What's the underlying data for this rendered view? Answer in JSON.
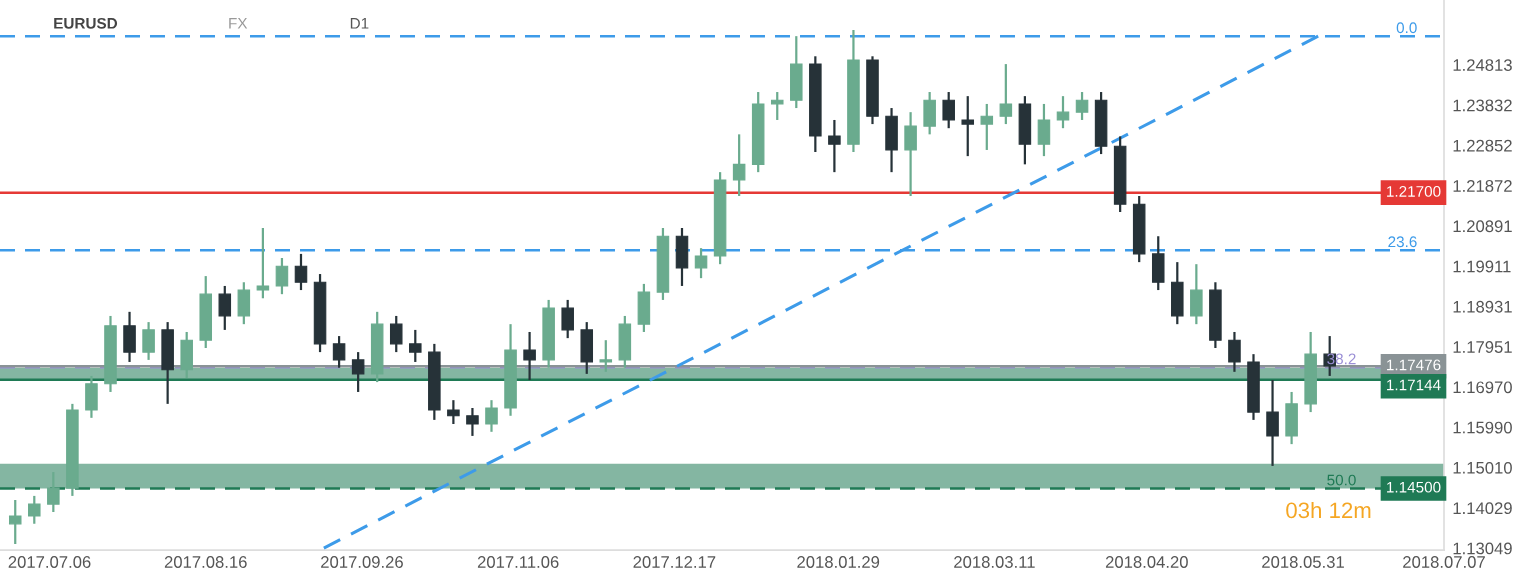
{
  "chart_data": {
    "type": "candlestick",
    "annotations": [
      "EURUSD",
      "FX",
      "D1",
      "03h 12m",
      {
        "text": "0.0",
        "x": "2018-06-30",
        "y": 1.2551
      },
      {
        "text": "23.6",
        "x": "2018-06-30",
        "y": 1.203
      },
      {
        "text": "38.2",
        "x": "2018-06-14",
        "y": 1.1745
      },
      {
        "text": "50.0",
        "x": "2018-06-14",
        "y": 1.145
      }
    ],
    "series": [
      {
        "x": [
          "2017-06-27",
          "2017-07-02",
          "2017-07-07",
          "2017-07-12",
          "2017-07-17",
          "2017-07-22",
          "2017-07-27",
          "2017-08-01",
          "2017-08-06",
          "2017-08-11",
          "2017-08-16",
          "2017-08-21",
          "2017-08-26",
          "2017-08-31",
          "2017-09-05",
          "2017-09-10",
          "2017-09-15",
          "2017-09-20",
          "2017-09-25",
          "2017-09-30",
          "2017-10-05",
          "2017-10-10",
          "2017-10-15",
          "2017-10-20",
          "2017-10-25",
          "2017-10-30",
          "2017-11-04",
          "2017-11-09",
          "2017-11-14",
          "2017-11-19",
          "2017-11-24",
          "2017-11-29",
          "2017-12-04",
          "2017-12-09",
          "2017-12-14",
          "2017-12-19",
          "2017-12-24",
          "2017-12-29",
          "2018-01-03",
          "2018-01-08",
          "2018-01-13",
          "2018-01-18",
          "2018-01-23",
          "2018-01-28",
          "2018-02-02",
          "2018-02-07",
          "2018-02-12",
          "2018-02-17",
          "2018-02-22",
          "2018-02-27",
          "2018-03-04",
          "2018-03-09",
          "2018-03-14",
          "2018-03-19",
          "2018-03-24",
          "2018-03-29",
          "2018-04-03",
          "2018-04-08",
          "2018-04-13",
          "2018-04-18",
          "2018-04-23",
          "2018-04-28",
          "2018-05-03",
          "2018-05-08",
          "2018-05-13",
          "2018-05-18",
          "2018-05-23",
          "2018-05-28",
          "2018-06-02",
          "2018-06-07"
        ],
        "ohlc": [
          [
            1.1364,
            1.1422,
            1.1315,
            1.1383
          ],
          [
            1.1383,
            1.1432,
            1.1364,
            1.1412
          ],
          [
            1.1412,
            1.149,
            1.1393,
            1.1451
          ],
          [
            1.1451,
            1.1656,
            1.1432,
            1.1641
          ],
          [
            1.1641,
            1.1724,
            1.1622,
            1.1705
          ],
          [
            1.1705,
            1.187,
            1.1685,
            1.1846
          ],
          [
            1.1846,
            1.188,
            1.1758,
            1.1782
          ],
          [
            1.1782,
            1.1855,
            1.1763,
            1.1836
          ],
          [
            1.1836,
            1.1855,
            1.1656,
            1.1739
          ],
          [
            1.1739,
            1.1831,
            1.1719,
            1.1811
          ],
          [
            1.1811,
            1.1967,
            1.1792,
            1.1923
          ],
          [
            1.1923,
            1.1943,
            1.1836,
            1.187
          ],
          [
            1.187,
            1.1952,
            1.185,
            1.1933
          ],
          [
            1.1933,
            1.2084,
            1.1913,
            1.1943
          ],
          [
            1.1943,
            1.2011,
            1.1923,
            1.1991
          ],
          [
            1.1991,
            1.2021,
            1.1933,
            1.1952
          ],
          [
            1.1952,
            1.1972,
            1.1782,
            1.1802
          ],
          [
            1.1802,
            1.1821,
            1.1744,
            1.1763
          ],
          [
            1.1763,
            1.1782,
            1.1685,
            1.1729
          ],
          [
            1.1729,
            1.188,
            1.1709,
            1.185
          ],
          [
            1.185,
            1.187,
            1.1782,
            1.1802
          ],
          [
            1.1802,
            1.1836,
            1.1758,
            1.1782
          ],
          [
            1.1782,
            1.1802,
            1.1617,
            1.1641
          ],
          [
            1.1641,
            1.1665,
            1.1607,
            1.1627
          ],
          [
            1.1627,
            1.1646,
            1.1578,
            1.1607
          ],
          [
            1.1607,
            1.1665,
            1.1588,
            1.1646
          ],
          [
            1.1646,
            1.185,
            1.1627,
            1.1787
          ],
          [
            1.1787,
            1.1831,
            1.1714,
            1.1763
          ],
          [
            1.1763,
            1.1909,
            1.1744,
            1.1889
          ],
          [
            1.1889,
            1.1909,
            1.1816,
            1.1836
          ],
          [
            1.1836,
            1.1855,
            1.1729,
            1.1758
          ],
          [
            1.1758,
            1.1811,
            1.1734,
            1.1763
          ],
          [
            1.1763,
            1.187,
            1.1744,
            1.185
          ],
          [
            1.185,
            1.1948,
            1.1831,
            1.1928
          ],
          [
            1.1928,
            1.2084,
            1.1909,
            1.2064
          ],
          [
            1.2064,
            1.2084,
            1.1943,
            1.1987
          ],
          [
            1.1987,
            1.2035,
            1.1962,
            1.2016
          ],
          [
            1.2016,
            1.222,
            1.1996,
            1.2201
          ],
          [
            1.2201,
            1.2312,
            1.2162,
            1.2239
          ],
          [
            1.2239,
            1.2415,
            1.222,
            1.2386
          ],
          [
            1.2386,
            1.2415,
            1.2347,
            1.2395
          ],
          [
            1.2395,
            1.2551,
            1.2376,
            1.2483
          ],
          [
            1.2483,
            1.2502,
            1.2269,
            1.2308
          ],
          [
            1.2308,
            1.2347,
            1.222,
            1.2288
          ],
          [
            1.2288,
            1.2566,
            1.2269,
            1.2493
          ],
          [
            1.2493,
            1.2502,
            1.2337,
            1.2356
          ],
          [
            1.2356,
            1.2376,
            1.222,
            1.2274
          ],
          [
            1.2274,
            1.2366,
            1.2162,
            1.2332
          ],
          [
            1.2332,
            1.2415,
            1.2312,
            1.2395
          ],
          [
            1.2395,
            1.2415,
            1.2327,
            1.2347
          ],
          [
            1.2347,
            1.2405,
            1.2259,
            1.2337
          ],
          [
            1.2337,
            1.2386,
            1.2274,
            1.2356
          ],
          [
            1.2356,
            1.2483,
            1.2337,
            1.2386
          ],
          [
            1.2386,
            1.2405,
            1.2239,
            1.2288
          ],
          [
            1.2288,
            1.2386,
            1.2259,
            1.2347
          ],
          [
            1.2347,
            1.2405,
            1.2327,
            1.2366
          ],
          [
            1.2366,
            1.2415,
            1.2347,
            1.2395
          ],
          [
            1.2395,
            1.2415,
            1.2264,
            1.2283
          ],
          [
            1.2283,
            1.2307,
            1.2123,
            1.2142
          ],
          [
            1.2142,
            1.2162,
            1.2001,
            1.2021
          ],
          [
            1.2021,
            1.2064,
            1.1933,
            1.1952
          ],
          [
            1.1952,
            1.2001,
            1.185,
            1.187
          ],
          [
            1.187,
            1.1996,
            1.185,
            1.1933
          ],
          [
            1.1933,
            1.1952,
            1.1792,
            1.1811
          ],
          [
            1.1811,
            1.1831,
            1.1734,
            1.1758
          ],
          [
            1.1758,
            1.1777,
            1.1617,
            1.1636
          ],
          [
            1.1636,
            1.1714,
            1.1505,
            1.1578
          ],
          [
            1.1578,
            1.1685,
            1.1558,
            1.1656
          ],
          [
            1.1656,
            1.1831,
            1.1636,
            1.1777
          ],
          [
            1.1777,
            1.1821,
            1.1724,
            1.1748
          ]
        ],
        "colors": [
          "#6aab8e",
          "#6aab8e",
          "#6aab8e",
          "#6aab8e",
          "#6aab8e",
          "#6aab8e",
          "#263238",
          "#6aab8e",
          "#263238",
          "#6aab8e",
          "#6aab8e",
          "#263238",
          "#6aab8e",
          "#6aab8e",
          "#6aab8e",
          "#263238",
          "#263238",
          "#263238",
          "#263238",
          "#6aab8e",
          "#263238",
          "#263238",
          "#263238",
          "#263238",
          "#263238",
          "#6aab8e",
          "#6aab8e",
          "#263238",
          "#6aab8e",
          "#263238",
          "#263238",
          "#6aab8e",
          "#6aab8e",
          "#6aab8e",
          "#6aab8e",
          "#263238",
          "#6aab8e",
          "#6aab8e",
          "#6aab8e",
          "#6aab8e",
          "#6aab8e",
          "#6aab8e",
          "#263238",
          "#263238",
          "#6aab8e",
          "#263238",
          "#263238",
          "#6aab8e",
          "#6aab8e",
          "#263238",
          "#263238",
          "#6aab8e",
          "#6aab8e",
          "#263238",
          "#6aab8e",
          "#6aab8e",
          "#6aab8e",
          "#263238",
          "#263238",
          "#263238",
          "#263238",
          "#263238",
          "#6aab8e",
          "#263238",
          "#263238",
          "#263238",
          "#263238",
          "#6aab8e",
          "#6aab8e",
          "#263238"
        ]
      },
      {
        "type": "line",
        "x": [
          "2017-09-16",
          "2018-06-04"
        ],
        "values": [
          1.1305,
          1.2551
        ],
        "color": "#3d9be9",
        "line_style": "dashed"
      }
    ],
    "ref_lines": [
      {
        "axis": "y",
        "value": 1.2551,
        "color": "#3d9be9",
        "line_style": "dashed"
      },
      {
        "axis": "y",
        "value": 1.217,
        "label": "1.21700",
        "color": "#e53935",
        "line_style": "solid"
      },
      {
        "axis": "y",
        "value": 1.203,
        "color": "#3d9be9",
        "line_style": "dashed"
      },
      {
        "axis": "y",
        "value": 1.1745,
        "color": "#9b8fd6",
        "line_style": "dashed"
      },
      {
        "axis": "y",
        "value": 1.17476,
        "label": "1.17476",
        "color": "#8a9396",
        "line_style": "solid"
      },
      {
        "axis": "y",
        "value": 1.17144,
        "label": "1.17144",
        "color": "#1f7a55",
        "line_style": "solid"
      },
      {
        "axis": "y",
        "value": 1.145,
        "label": "1.14500",
        "color": "#1f7a55",
        "line_style": "dashed"
      }
    ],
    "bands": [
      {
        "axis": "y",
        "from": 1.17144,
        "to": 1.1744,
        "color": "#1f7a55"
      },
      {
        "axis": "y",
        "from": 1.145,
        "to": 1.151,
        "color": "#1f7a55"
      }
    ],
    "xlim": [
      "2017-06-23",
      "2018-07-07"
    ],
    "xticks": [
      {
        "value": "2017-07-06",
        "label": "2017.07.06"
      },
      {
        "value": "2017-08-16",
        "label": "2017.08.16"
      },
      {
        "value": "2017-09-26",
        "label": "2017.09.26"
      },
      {
        "value": "2017-11-06",
        "label": "2017.11.06"
      },
      {
        "value": "2017-12-17",
        "label": "2017.12.17"
      },
      {
        "value": "2018-01-29",
        "label": "2018.01.29"
      },
      {
        "value": "2018-03-11",
        "label": "2018.03.11"
      },
      {
        "value": "2018-04-20",
        "label": "2018.04.20"
      },
      {
        "value": "2018-05-31",
        "label": "2018.05.31"
      },
      {
        "value": "2018-07-07",
        "label": "2018.07.07"
      }
    ],
    "ylim": [
      1.13,
      1.2639
    ],
    "yticks": [
      1.24813,
      1.23832,
      1.22852,
      1.21872,
      1.20891,
      1.19911,
      1.18931,
      1.17951,
      {
        "value": 1.1697,
        "label": "1.16970"
      },
      {
        "value": 1.1599,
        "label": "1.15990"
      },
      {
        "value": 1.1501,
        "label": "1.15010"
      },
      1.14029,
      1.13049
    ]
  }
}
